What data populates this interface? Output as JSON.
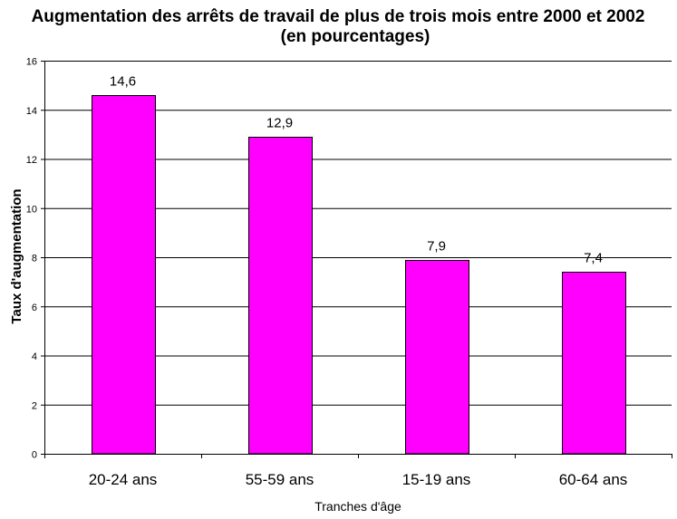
{
  "chart_data": {
    "type": "bar",
    "title": "Augmentation des arrêts de travail de plus de trois mois entre 2000 et 2002",
    "subtitle": "(en pourcentages)",
    "xlabel": "Tranches d'âge",
    "ylabel": "Taux d'augmentation",
    "categories": [
      "20-24 ans",
      "55-59 ans",
      "15-19 ans",
      "60-64 ans"
    ],
    "values": [
      14.6,
      12.9,
      7.9,
      7.4
    ],
    "data_labels": [
      "14,6",
      "12,9",
      "7,9",
      "7,4"
    ],
    "ylim": [
      0,
      16
    ],
    "yticks": [
      0,
      2,
      4,
      6,
      8,
      10,
      12,
      14,
      16
    ],
    "grid": true,
    "legend": "none",
    "colors": {
      "bar": "#FF00FF",
      "bar_stroke": "#000000",
      "grid": "#000000",
      "background": "#FFFFFF"
    }
  }
}
